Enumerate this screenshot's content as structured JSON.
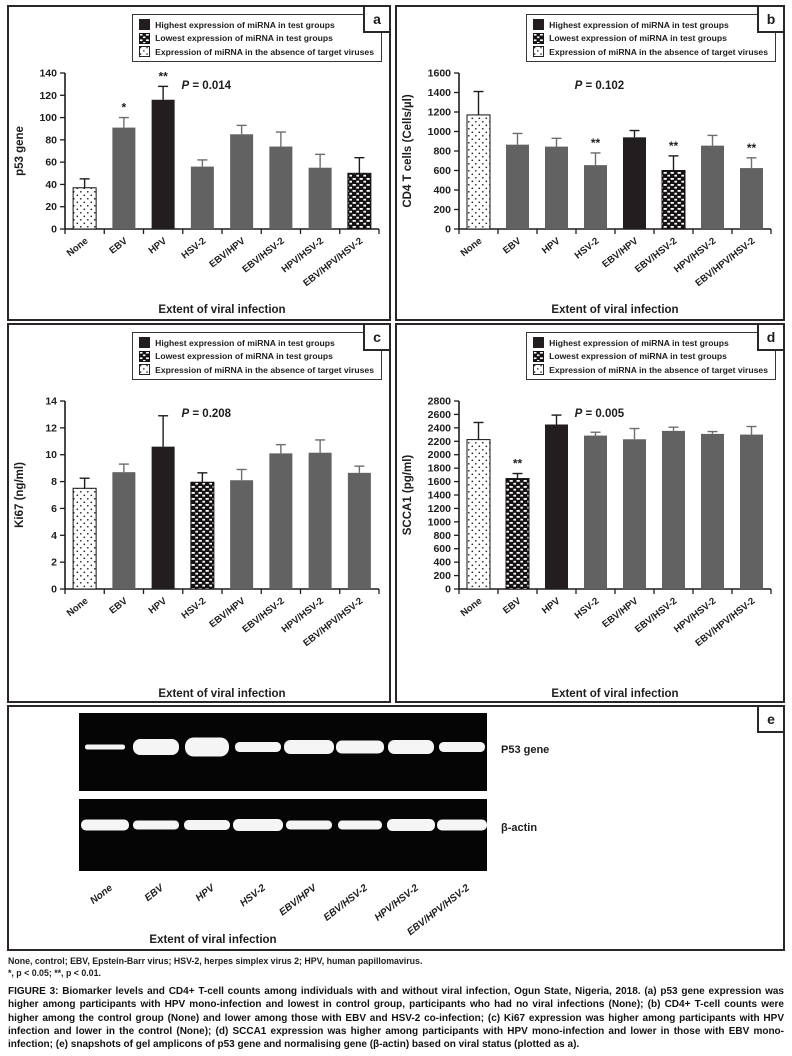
{
  "legend": {
    "items": [
      {
        "label": "Highest expression of miRNA in test groups",
        "pattern": "solid"
      },
      {
        "label": "Lowest expression of miRNA in test groups",
        "pattern": "checker"
      },
      {
        "label": "Expression of miRNA in the absence of target viruses",
        "pattern": "dotted"
      }
    ]
  },
  "panel_labels": [
    "a",
    "b",
    "c",
    "d",
    "e"
  ],
  "colors": {
    "bar_highest": "#221e1f",
    "bar_test": "#626262",
    "axis": "#1f1c1d",
    "error_on_gray": "#6e6e6e",
    "gel_background": "#050505",
    "band": "#ffffff"
  },
  "chart_data": [
    {
      "type": "bar",
      "panel": "a",
      "ylabel": "p53 gene",
      "xlabel": "Extent of viral infection",
      "p_prefix": "P",
      "p_rest": " = 0.014",
      "ylim": [
        0,
        140
      ],
      "ystep": 20,
      "grid": false,
      "legend_position": "top",
      "categories": [
        "None",
        "EBV",
        "HPV",
        "HSV-2",
        "EBV/HPV",
        "EBV/HSV-2",
        "HPV/HSV-2",
        "EBV/HPV/HSV-2"
      ],
      "values": [
        37,
        91,
        116,
        56,
        85,
        74,
        55,
        50
      ],
      "errors": [
        8,
        9,
        12,
        6,
        8,
        13,
        12,
        14
      ],
      "styles": [
        "control",
        "test",
        "highest",
        "test",
        "test",
        "test",
        "test",
        "lowest"
      ],
      "sig": [
        "",
        "*",
        "**",
        "",
        "",
        "",
        "",
        ""
      ]
    },
    {
      "type": "bar",
      "panel": "b",
      "ylabel": "CD4 T cells (Cells/µl)",
      "xlabel": "Extent of viral infection",
      "p_prefix": "P",
      "p_rest": " = 0.102",
      "ylim": [
        0,
        1600
      ],
      "ystep": 200,
      "grid": false,
      "legend_position": "top",
      "categories": [
        "None",
        "EBV",
        "HPV",
        "HSV-2",
        "EBV/HPV",
        "EBV/HSV-2",
        "HPV/HSV-2",
        "EBV/HPV/HSV-2"
      ],
      "values": [
        1170,
        865,
        845,
        655,
        940,
        600,
        855,
        625
      ],
      "errors": [
        240,
        115,
        85,
        125,
        70,
        150,
        105,
        105
      ],
      "styles": [
        "control",
        "test",
        "test",
        "test",
        "highest",
        "lowest",
        "test",
        "test"
      ],
      "sig": [
        "",
        "",
        "",
        "**",
        "",
        "**",
        "",
        "**"
      ]
    },
    {
      "type": "bar",
      "panel": "c",
      "ylabel": "Ki67 (ng/ml)",
      "xlabel": "Extent of viral infection",
      "p_prefix": "P",
      "p_rest": " = 0.208",
      "ylim": [
        0,
        14
      ],
      "ystep": 2,
      "grid": false,
      "legend_position": "top",
      "categories": [
        "None",
        "EBV",
        "HPV",
        "HSV-2",
        "EBV/HPV",
        "EBV/HSV-2",
        "HPV/HSV-2",
        "EBV/HPV/HSV-2"
      ],
      "values": [
        7.5,
        8.7,
        10.6,
        7.95,
        8.1,
        10.1,
        10.15,
        8.65
      ],
      "errors": [
        0.75,
        0.6,
        2.3,
        0.7,
        0.8,
        0.65,
        0.95,
        0.5
      ],
      "styles": [
        "control",
        "test",
        "highest",
        "lowest",
        "test",
        "test",
        "test",
        "test"
      ],
      "sig": [
        "",
        "",
        "",
        "",
        "",
        "",
        "",
        ""
      ]
    },
    {
      "type": "bar",
      "panel": "d",
      "ylabel": "SCCA1 (pg/ml)",
      "xlabel": "Extent of viral infection",
      "p_prefix": "P",
      "p_rest": " = 0.005",
      "ylim": [
        0,
        2800
      ],
      "ystep": 200,
      "grid": false,
      "legend_position": "top",
      "categories": [
        "None",
        "EBV",
        "HPV",
        "HSV-2",
        "EBV/HPV",
        "EBV/HSV-2",
        "HPV/HSV-2",
        "EBV/HPV/HSV-2"
      ],
      "values": [
        2225,
        1645,
        2450,
        2285,
        2230,
        2355,
        2310,
        2300
      ],
      "errors": [
        255,
        75,
        140,
        50,
        160,
        55,
        35,
        120
      ],
      "styles": [
        "control",
        "lowest",
        "highest",
        "test",
        "test",
        "test",
        "test",
        "test"
      ],
      "sig": [
        "",
        "**",
        "",
        "",
        "",
        "",
        "",
        ""
      ]
    }
  ],
  "gel_panel": {
    "panel": "e",
    "rows": [
      {
        "label": "P53 gene",
        "bands": [
          [
            40,
            5
          ],
          [
            46,
            16
          ],
          [
            44,
            19
          ],
          [
            46,
            10
          ],
          [
            50,
            14
          ],
          [
            48,
            13
          ],
          [
            46,
            14
          ],
          [
            46,
            10
          ]
        ]
      },
      {
        "label": "β-actin",
        "bands": [
          [
            48,
            11
          ],
          [
            46,
            9
          ],
          [
            46,
            10
          ],
          [
            50,
            12
          ],
          [
            46,
            9
          ],
          [
            44,
            9
          ],
          [
            48,
            12
          ],
          [
            50,
            11
          ]
        ]
      }
    ],
    "lanes": [
      "None",
      "EBV",
      "HPV",
      "HSV-2",
      "EBV/HPV",
      "EBV/HSV-2",
      "HPV/HSV-2",
      "EBV/HPV/HSV-2"
    ],
    "xlabel": "Extent of viral infection"
  },
  "caption": {
    "abbreviations": "None, control; EBV, Epstein-Barr virus; HSV-2, herpes simplex virus 2; HPV, human papillomavirus.",
    "significance": "*, p < 0.05; **, p < 0.01.",
    "figure_label": "FIGURE 3:",
    "figure_text": "Biomarker levels and CD4+ T-cell counts among individuals with and without viral infection, Ogun State, Nigeria, 2018. (a) p53 gene expression was higher among participants with HPV mono-infection and lowest in control group, participants who had no viral infections (None); (b) CD4+ T-cell counts were higher among the control group (None) and lower among those with EBV and HSV-2 co-infection; (c) Ki67 expression was higher among participants with HPV infection and lower in the control (None); (d) SCCA1 expression was higher among participants with HPV mono-infection and lower in those with EBV mono-infection; (e) snapshots of gel amplicons of p53 gene and normalising gene (β-actin) based on viral status (plotted as a)."
  }
}
